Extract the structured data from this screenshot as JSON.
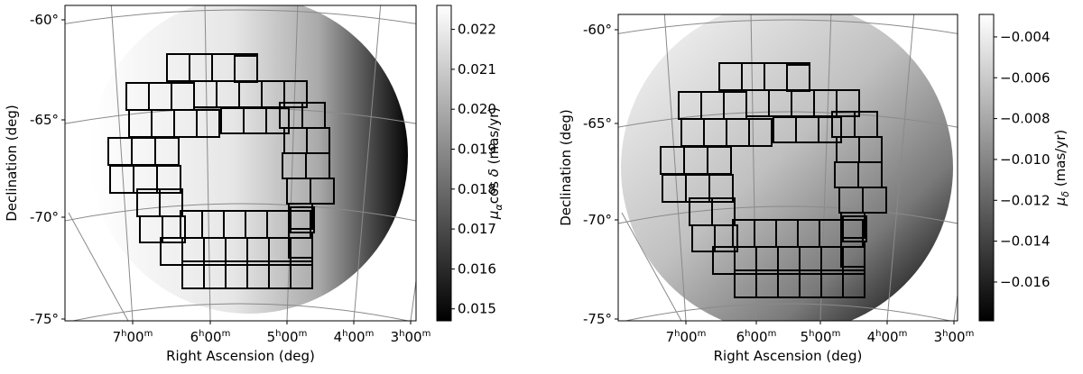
{
  "chart_data": [
    {
      "type": "heatmap",
      "projection": "gnomonic sky map, circular field",
      "xlabel": "Right Ascension (deg)",
      "ylabel": "Declination (deg)",
      "x_ticks": [
        "7h00m",
        "6h00m",
        "5h00m",
        "4h00m",
        "3h00m"
      ],
      "y_ticks": [
        "-60°",
        "-65°",
        "-70°",
        "-75°"
      ],
      "colorbar": {
        "label": "μαcos δ (mas/yr)",
        "ticks": [
          0.015,
          0.016,
          0.017,
          0.018,
          0.019,
          0.02,
          0.021,
          0.022
        ],
        "tick_labels": [
          "0.015",
          "0.016",
          "0.017",
          "0.018",
          "0.019",
          "0.020",
          "0.021",
          "0.022"
        ],
        "range": [
          0.0147,
          0.0226
        ],
        "colormap": "gray"
      },
      "gradient": "increases from east (right) to west (left); darkest at right edge",
      "overlay": "black outlines of survey tiles in an annular footprint",
      "grid": true
    },
    {
      "type": "heatmap",
      "projection": "gnomonic sky map, circular field",
      "xlabel": "Right Ascension (deg)",
      "ylabel": "Declination (deg)",
      "x_ticks": [
        "7h00m",
        "6h00m",
        "5h00m",
        "4h00m",
        "3h00m"
      ],
      "y_ticks": [
        "-60°",
        "-65°",
        "-70°",
        "-75°"
      ],
      "colorbar": {
        "label": "μδ (mas/yr)",
        "ticks": [
          -0.004,
          -0.006,
          -0.008,
          -0.01,
          -0.012,
          -0.014,
          -0.016
        ],
        "tick_labels": [
          "−0.004",
          "−0.006",
          "−0.008",
          "−0.010",
          "−0.012",
          "−0.014",
          "−0.016"
        ],
        "range": [
          -0.0179,
          -0.0029
        ],
        "colormap": "gray"
      },
      "gradient": "increases from southeast (lower right) toward northwest (upper left)",
      "overlay": "black outlines of survey tiles in an annular footprint",
      "grid": true
    }
  ]
}
